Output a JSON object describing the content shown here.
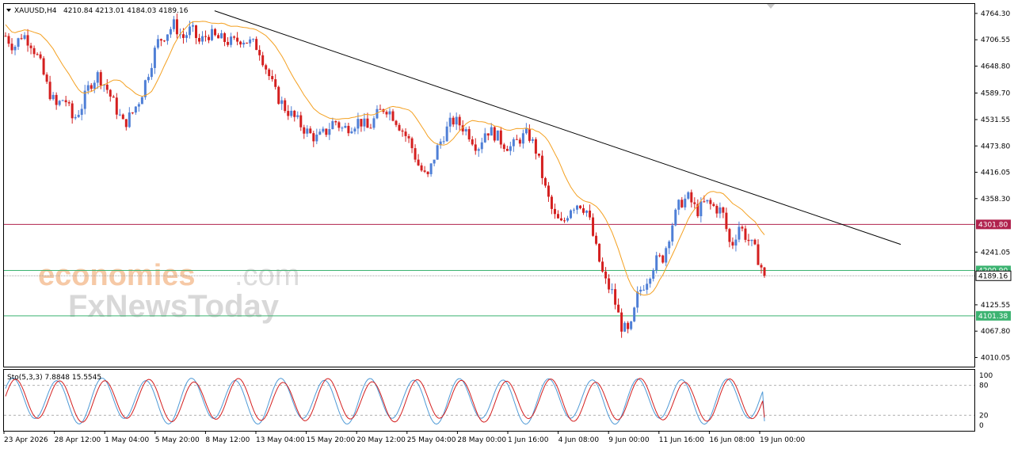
{
  "header": {
    "symbol_timeframe": "XAUUSD,H4",
    "ohlc": "4210.84 4213.01 4184.03 4189.16"
  },
  "watermark": {
    "line1_brand": "economies",
    "line1_suffix": ".com",
    "line2": "FxNewsToday"
  },
  "chart_data": {
    "type": "candlestick",
    "symbol": "XAUUSD",
    "timeframe": "H4",
    "ylim": [
      3990,
      4785
    ],
    "y_ticks": [
      "4764.30",
      "4706.55",
      "4648.80",
      "4589.70",
      "4531.55",
      "4473.80",
      "4416.05",
      "4358.30",
      "4241.05",
      "4125.55",
      "4067.80",
      "4010.05"
    ],
    "x_ticks": [
      "23 Apr 2026",
      "28 Apr 12:00",
      "1 May 04:00",
      "5 May 20:00",
      "8 May 12:00",
      "13 May 04:00",
      "15 May 20:00",
      "20 May 12:00",
      "25 May 04:00",
      "28 May 00:00",
      "1 Jun 16:00",
      "4 Jun 08:00",
      "9 Jun 00:00",
      "11 Jun 16:00",
      "16 Jun 08:00",
      "19 Jun 00:00"
    ],
    "close_path": [
      4715,
      4690,
      4720,
      4700,
      4660,
      4600,
      4560,
      4580,
      4530,
      4560,
      4610,
      4630,
      4600,
      4560,
      4520,
      4545,
      4580,
      4640,
      4700,
      4720,
      4740,
      4710,
      4730,
      4700,
      4720,
      4710,
      4705,
      4700,
      4710,
      4700,
      4690,
      4640,
      4590,
      4560,
      4540,
      4520,
      4500,
      4490,
      4505,
      4530,
      4510,
      4520,
      4530,
      4510,
      4540,
      4560,
      4540,
      4510,
      4480,
      4430,
      4400,
      4460,
      4500,
      4530,
      4520,
      4500,
      4470,
      4510,
      4500,
      4480,
      4470,
      4490,
      4500,
      4460,
      4380,
      4320,
      4300,
      4340,
      4350,
      4330,
      4250,
      4180,
      4150,
      4080,
      4060,
      4150,
      4180,
      4220,
      4230,
      4300,
      4350,
      4360,
      4330,
      4350,
      4340,
      4330,
      4250,
      4300,
      4270,
      4240,
      4189.16
    ],
    "price_levels": [
      {
        "label": "4301.80",
        "value": 4301.8,
        "color": "#b0224d"
      },
      {
        "label": "4200.90",
        "value": 4200.9,
        "color": "#3cb371"
      },
      {
        "label": "4101.38",
        "value": 4101.38,
        "color": "#3cb371"
      },
      {
        "label": "4189.16",
        "value": 4189.16,
        "color": "#000000"
      }
    ],
    "trendline": {
      "from": {
        "x_index": 0.265,
        "price": 4770
      },
      "to": {
        "x_index": 1.0,
        "price": 4258
      }
    },
    "moving_average": {
      "color": "#f4a020"
    },
    "colors": {
      "bull": "#4f7fd6",
      "bear": "#d41f1f",
      "trendline": "#000000"
    },
    "oscillator": {
      "label": "Sto(5,3,3) 7.8848 15.5545",
      "ylim": [
        0,
        100
      ],
      "y_ticks": [
        "100",
        "80",
        "20",
        "0"
      ],
      "main_color": "#4f9ad6",
      "signal_color": "#d41f1f",
      "cycles": 17,
      "last_main": 7.8848,
      "last_signal": 15.5545
    }
  }
}
